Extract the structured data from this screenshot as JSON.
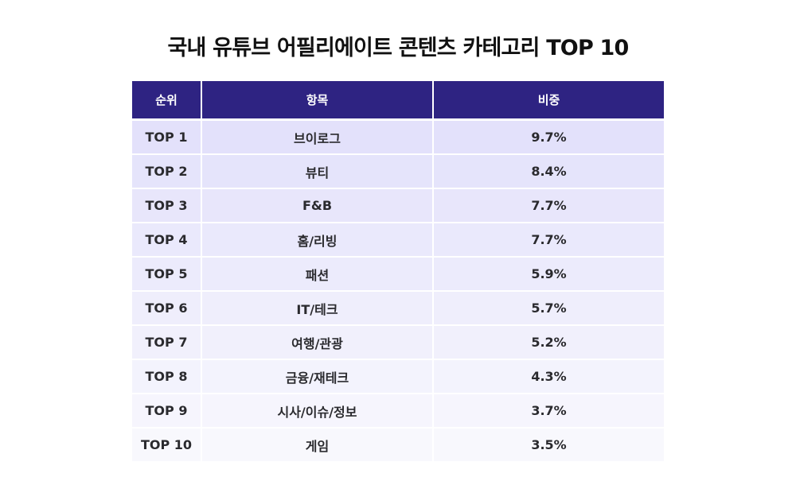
{
  "chart_data": {
    "type": "table",
    "title": "국내 유튜브 어필리에이트 콘텐츠 카테고리 TOP 10",
    "columns": [
      "순위",
      "항목",
      "비중"
    ],
    "rows": [
      {
        "rank": "TOP 1",
        "item": "브이로그",
        "share": "9.7%",
        "value": 9.7
      },
      {
        "rank": "TOP 2",
        "item": "뷰티",
        "share": "8.4%",
        "value": 8.4
      },
      {
        "rank": "TOP 3",
        "item": "F&B",
        "share": "7.7%",
        "value": 7.7
      },
      {
        "rank": "TOP 4",
        "item": "홈/리빙",
        "share": "7.7%",
        "value": 7.7
      },
      {
        "rank": "TOP 5",
        "item": "패션",
        "share": "5.9%",
        "value": 5.9
      },
      {
        "rank": "TOP 6",
        "item": "IT/테크",
        "share": "5.7%",
        "value": 5.7
      },
      {
        "rank": "TOP 7",
        "item": "여행/관광",
        "share": "5.2%",
        "value": 5.2
      },
      {
        "rank": "TOP 8",
        "item": "금융/재테크",
        "share": "4.3%",
        "value": 4.3
      },
      {
        "rank": "TOP 9",
        "item": "시사/이슈/정보",
        "share": "3.7%",
        "value": 3.7
      },
      {
        "rank": "TOP 10",
        "item": "게임",
        "share": "3.5%",
        "value": 3.5
      }
    ]
  },
  "colors": {
    "header_bg": "#2e2382",
    "header_text": "#ffffff",
    "row_top": "#e3e1fb",
    "row_bottom": "#f8f8fd",
    "cell_text": "#2a2a2e"
  }
}
